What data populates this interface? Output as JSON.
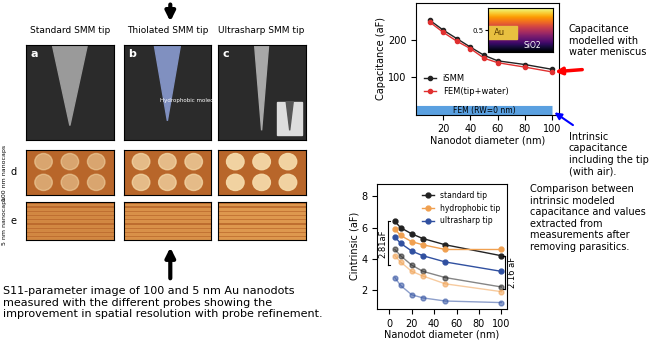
{
  "panels": {
    "tip_labels": [
      "Standard SMM tip",
      "Thiolated SMM tip",
      "Ultrasharp SMM tip"
    ],
    "sem_letters": [
      "a",
      "b",
      "c"
    ],
    "sem_note": "Hydrophobic molecules",
    "row_letters": [
      "d",
      "e"
    ],
    "row_labels": [
      "100 nm nanocaps",
      "5 nm nanocaps"
    ],
    "caption": "S11-parameter image of 100 and 5 nm Au nanodots measured with the different probes showing the improvement in spatial resolution with probe refinement."
  },
  "notes": {
    "water": "Capacitance modelled with water meniscus",
    "intrinsic": "Intrinsic capacitance including the tip (with air).",
    "comparison": "Comparison between intrinsic modeled capacitance and values extracted from measurements after removing parasitics."
  },
  "chart_data": [
    {
      "type": "line",
      "ylabel": "Capacitance (aF)",
      "xlabel": "Nanodot diameter (nm)",
      "x": [
        10,
        20,
        30,
        40,
        50,
        60,
        80,
        100
      ],
      "series": [
        {
          "name": "iSMM",
          "color": "#222222",
          "marker": "o",
          "values": [
            255,
            228,
            205,
            182,
            160,
            145,
            135,
            122
          ]
        },
        {
          "name": "FEM(tip+water)",
          "color": "#e03030",
          "marker": "o",
          "values": [
            250,
            222,
            198,
            178,
            152,
            140,
            128,
            115
          ]
        }
      ],
      "band": {
        "name": "FEM (RW=0 nm)",
        "x": [
          0,
          100
        ],
        "values": [
          10,
          10
        ],
        "color": "#5aa0e0"
      },
      "inset": {
        "labels": [
          "Au",
          "SiO2"
        ],
        "ylim": [
          0,
          1
        ],
        "yticks": [
          0.5
        ]
      },
      "xlim": [
        0,
        105
      ],
      "xticks": [
        20,
        40,
        60,
        80,
        100
      ],
      "ylim": [
        0,
        300
      ],
      "yticks": [
        100,
        200
      ],
      "legend": "lower left"
    },
    {
      "type": "line",
      "ylabel": "Cintrinsic (aF)",
      "xlabel": "Nanodot diameter (nm)",
      "x": [
        5,
        10,
        20,
        30,
        50,
        100
      ],
      "series": [
        {
          "name": "standard tip",
          "color": "#222222",
          "marker": "o",
          "values": [
            6.4,
            6.0,
            5.6,
            5.3,
            4.9,
            4.2
          ],
          "values_2": [
            4.6,
            4.2,
            3.6,
            3.2,
            2.8,
            2.2
          ]
        },
        {
          "name": "hydrophobic tip",
          "color": "#f0a050",
          "marker": "o",
          "values": [
            5.9,
            5.5,
            5.1,
            4.9,
            4.6,
            4.6
          ],
          "values_2": [
            4.2,
            3.8,
            3.2,
            2.9,
            2.4,
            1.9
          ]
        },
        {
          "name": "ultrasharp tip",
          "color": "#3050a0",
          "marker": "o",
          "values": [
            5.4,
            5.0,
            4.5,
            4.2,
            3.8,
            3.2
          ],
          "values_2": [
            2.8,
            2.3,
            1.7,
            1.5,
            1.3,
            1.2
          ]
        }
      ],
      "annotations": [
        {
          "text": "2.81aF",
          "value": 2.81
        },
        {
          "text": "2.16 aF",
          "value": 2.16
        }
      ],
      "xlim": [
        -11,
        105
      ],
      "xticks": [
        0,
        20,
        40,
        60,
        80,
        100
      ],
      "ylim": [
        0.8,
        8.8
      ],
      "yticks": [
        2,
        4,
        6,
        8
      ],
      "legend": "upper right"
    }
  ]
}
